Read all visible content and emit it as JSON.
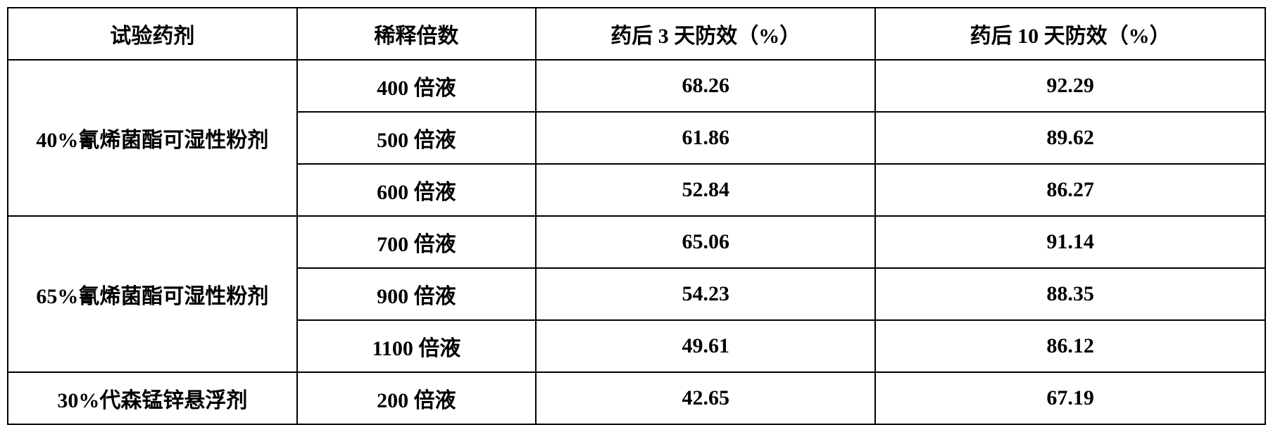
{
  "table": {
    "headers": [
      "试验药剂",
      "稀释倍数",
      "药后 3 天防效（%）",
      "药后 10 天防效（%）"
    ],
    "groups": [
      {
        "agent": "40%氰烯菌酯可湿性粉剂",
        "rows": [
          {
            "dilution": "400 倍液",
            "eff3": "68.26",
            "eff10": "92.29"
          },
          {
            "dilution": "500 倍液",
            "eff3": "61.86",
            "eff10": "89.62"
          },
          {
            "dilution": "600 倍液",
            "eff3": "52.84",
            "eff10": "86.27"
          }
        ]
      },
      {
        "agent": "65%氰烯菌酯可湿性粉剂",
        "rows": [
          {
            "dilution": "700 倍液",
            "eff3": "65.06",
            "eff10": "91.14"
          },
          {
            "dilution": "900 倍液",
            "eff3": "54.23",
            "eff10": "88.35"
          },
          {
            "dilution": "1100 倍液",
            "eff3": "49.61",
            "eff10": "86.12"
          }
        ]
      },
      {
        "agent": "30%代森锰锌悬浮剂",
        "rows": [
          {
            "dilution": "200 倍液",
            "eff3": "42.65",
            "eff10": "67.19"
          }
        ]
      }
    ],
    "border_color": "#000000",
    "background_color": "#ffffff",
    "font_size": 30,
    "font_weight": "bold"
  }
}
